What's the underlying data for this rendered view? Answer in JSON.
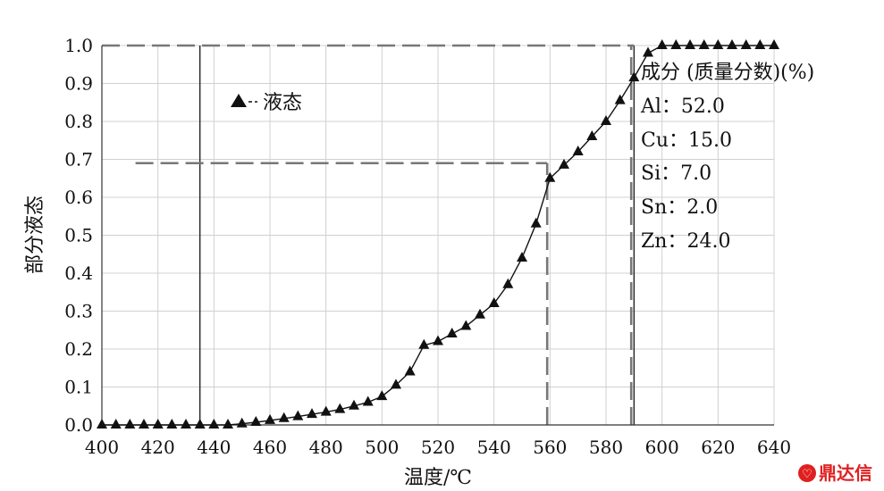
{
  "chart_data": {
    "type": "line",
    "xlabel": "温度/℃",
    "ylabel": "部分液态",
    "xlim": [
      400,
      640
    ],
    "ylim": [
      0,
      1.0
    ],
    "x_ticks": [
      "400",
      "420",
      "440",
      "460",
      "480",
      "500",
      "520",
      "540",
      "560",
      "580",
      "600",
      "620",
      "640"
    ],
    "y_ticks": [
      "0.0",
      "0.1",
      "0.2",
      "0.3",
      "0.4",
      "0.5",
      "0.6",
      "0.7",
      "0.8",
      "0.9",
      "1.0"
    ],
    "grid": true,
    "legend": {
      "position": "top-left",
      "label": "液态"
    },
    "series": [
      {
        "name": "液态",
        "x": [
          400,
          405,
          410,
          415,
          420,
          425,
          430,
          435,
          440,
          445,
          450,
          455,
          460,
          465,
          470,
          475,
          480,
          485,
          490,
          495,
          500,
          505,
          510,
          515,
          520,
          525,
          530,
          535,
          540,
          545,
          550,
          555,
          560,
          565,
          570,
          575,
          580,
          585,
          590,
          595,
          600,
          605,
          610,
          615,
          620,
          625,
          630,
          635,
          640
        ],
        "y": [
          0,
          0,
          0,
          0,
          0,
          0,
          0,
          0,
          0,
          0,
          0.003,
          0.007,
          0.012,
          0.017,
          0.022,
          0.028,
          0.034,
          0.041,
          0.05,
          0.06,
          0.075,
          0.105,
          0.14,
          0.21,
          0.22,
          0.24,
          0.26,
          0.29,
          0.32,
          0.37,
          0.44,
          0.53,
          0.65,
          0.685,
          0.72,
          0.76,
          0.8,
          0.855,
          0.915,
          0.98,
          1.0,
          1.0,
          1.0,
          1.0,
          1.0,
          1.0,
          1.0,
          1.0,
          1.0
        ]
      }
    ],
    "reference_lines": [
      {
        "type": "vertical",
        "x": 435,
        "style": "solid"
      },
      {
        "type": "vertical",
        "x": 589,
        "style": "dashed",
        "y_to": 1.0
      },
      {
        "type": "vertical",
        "x": 590,
        "style": "solid"
      },
      {
        "type": "vertical",
        "x": 559,
        "style": "dashed",
        "y_to": 0.69
      },
      {
        "type": "horizontal",
        "y": 0.69,
        "style": "dashed",
        "x_from": 412,
        "x_to": 559
      },
      {
        "type": "horizontal",
        "y": 1.0,
        "style": "dashed",
        "x_from": 400,
        "x_to": 590
      }
    ],
    "annotation": {
      "title": "成分 (质量分数)(%)",
      "lines": [
        "Al：52.0",
        "Cu：15.0",
        "Si：7.0",
        "Sn：2.0",
        "Zn：24.0"
      ]
    }
  },
  "watermark": {
    "text": "鼎达信",
    "color": "#e02020"
  }
}
